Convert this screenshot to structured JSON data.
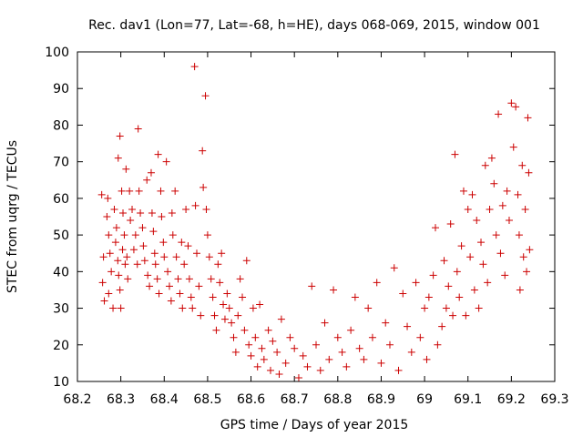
{
  "colors": {
    "series": "#cc0000",
    "axis": "#000000",
    "background": "#ffffff"
  },
  "chart_data": {
    "type": "scatter",
    "title": "Rec. dav1 (Lon=77, Lat=-68, h=HE), days 068-069, 2015, window 001",
    "xlabel": "GPS time / Days of year 2015",
    "ylabel": "STEC from uqrg / TECUs",
    "xlim": [
      68.2,
      69.3
    ],
    "ylim": [
      10,
      100
    ],
    "xticks": [
      68.2,
      68.3,
      68.4,
      68.5,
      68.6,
      68.7,
      68.8,
      68.9,
      69.0,
      69.1,
      69.2,
      69.3
    ],
    "xtick_labels": [
      "68.2",
      "68.3",
      "68.4",
      "68.5",
      "68.6",
      "68.7",
      "68.8",
      "68.9",
      "69",
      "69.1",
      "69.2",
      "69.3"
    ],
    "yticks": [
      10,
      20,
      30,
      40,
      50,
      60,
      70,
      80,
      90,
      100
    ],
    "ytick_labels": [
      "10",
      "20",
      "30",
      "40",
      "50",
      "60",
      "70",
      "80",
      "90",
      "100"
    ],
    "marker": "plus",
    "grid": false,
    "legend": "none",
    "points": [
      [
        68.256,
        61
      ],
      [
        68.26,
        44
      ],
      [
        68.258,
        37
      ],
      [
        68.262,
        32
      ],
      [
        68.27,
        60
      ],
      [
        68.268,
        55
      ],
      [
        68.272,
        50
      ],
      [
        68.275,
        45
      ],
      [
        68.278,
        40
      ],
      [
        68.272,
        34
      ],
      [
        68.282,
        30
      ],
      [
        68.285,
        57
      ],
      [
        68.29,
        52
      ],
      [
        68.288,
        48
      ],
      [
        68.293,
        43
      ],
      [
        68.295,
        39
      ],
      [
        68.298,
        35
      ],
      [
        68.3,
        30
      ],
      [
        68.294,
        71
      ],
      [
        68.298,
        77
      ],
      [
        68.302,
        62
      ],
      [
        68.305,
        56
      ],
      [
        68.308,
        50
      ],
      [
        68.304,
        46
      ],
      [
        68.31,
        42
      ],
      [
        68.312,
        68
      ],
      [
        68.314,
        44
      ],
      [
        68.316,
        38
      ],
      [
        68.32,
        62
      ],
      [
        68.322,
        54
      ],
      [
        68.326,
        57
      ],
      [
        68.33,
        46
      ],
      [
        68.334,
        50
      ],
      [
        68.338,
        42
      ],
      [
        68.34,
        79
      ],
      [
        68.342,
        62
      ],
      [
        68.345,
        56
      ],
      [
        68.35,
        52
      ],
      [
        68.352,
        47
      ],
      [
        68.355,
        43
      ],
      [
        68.36,
        65
      ],
      [
        68.362,
        39
      ],
      [
        68.366,
        36
      ],
      [
        68.37,
        67
      ],
      [
        68.372,
        56
      ],
      [
        68.375,
        51
      ],
      [
        68.378,
        45
      ],
      [
        68.38,
        42
      ],
      [
        68.384,
        38
      ],
      [
        68.388,
        34
      ],
      [
        68.386,
        72
      ],
      [
        68.392,
        62
      ],
      [
        68.394,
        55
      ],
      [
        68.398,
        48
      ],
      [
        68.4,
        44
      ],
      [
        68.405,
        70
      ],
      [
        68.408,
        40
      ],
      [
        68.412,
        36
      ],
      [
        68.416,
        32
      ],
      [
        68.418,
        56
      ],
      [
        68.42,
        50
      ],
      [
        68.425,
        62
      ],
      [
        68.428,
        44
      ],
      [
        68.432,
        38
      ],
      [
        68.436,
        34
      ],
      [
        68.44,
        48
      ],
      [
        68.442,
        30
      ],
      [
        68.446,
        42
      ],
      [
        68.45,
        57
      ],
      [
        68.455,
        47
      ],
      [
        68.458,
        38
      ],
      [
        68.462,
        33
      ],
      [
        68.465,
        30
      ],
      [
        68.47,
        96
      ],
      [
        68.472,
        58
      ],
      [
        68.475,
        45
      ],
      [
        68.48,
        36
      ],
      [
        68.484,
        28
      ],
      [
        68.488,
        73
      ],
      [
        68.49,
        63
      ],
      [
        68.495,
        88
      ],
      [
        68.497,
        57
      ],
      [
        68.5,
        50
      ],
      [
        68.504,
        44
      ],
      [
        68.508,
        38
      ],
      [
        68.512,
        33
      ],
      [
        68.516,
        28
      ],
      [
        68.52,
        24
      ],
      [
        68.524,
        42
      ],
      [
        68.528,
        37
      ],
      [
        68.532,
        45
      ],
      [
        68.536,
        31
      ],
      [
        68.54,
        27
      ],
      [
        68.545,
        34
      ],
      [
        68.55,
        30
      ],
      [
        68.555,
        26
      ],
      [
        68.56,
        22
      ],
      [
        68.565,
        18
      ],
      [
        68.57,
        28
      ],
      [
        68.575,
        38
      ],
      [
        68.58,
        33
      ],
      [
        68.585,
        24
      ],
      [
        68.59,
        43
      ],
      [
        68.595,
        20
      ],
      [
        68.6,
        17
      ],
      [
        68.605,
        30
      ],
      [
        68.61,
        22
      ],
      [
        68.615,
        14
      ],
      [
        68.62,
        31
      ],
      [
        68.625,
        19
      ],
      [
        68.63,
        16
      ],
      [
        68.64,
        24
      ],
      [
        68.645,
        13
      ],
      [
        68.65,
        21
      ],
      [
        68.66,
        18
      ],
      [
        68.665,
        12
      ],
      [
        68.67,
        27
      ],
      [
        68.68,
        15
      ],
      [
        68.69,
        22
      ],
      [
        68.7,
        19
      ],
      [
        68.71,
        11
      ],
      [
        68.72,
        17
      ],
      [
        68.73,
        14
      ],
      [
        68.74,
        36
      ],
      [
        68.75,
        20
      ],
      [
        68.76,
        13
      ],
      [
        68.77,
        26
      ],
      [
        68.78,
        16
      ],
      [
        68.79,
        35
      ],
      [
        68.8,
        22
      ],
      [
        68.81,
        18
      ],
      [
        68.82,
        14
      ],
      [
        68.83,
        24
      ],
      [
        68.84,
        33
      ],
      [
        68.85,
        19
      ],
      [
        68.86,
        16
      ],
      [
        68.87,
        30
      ],
      [
        68.88,
        22
      ],
      [
        68.89,
        37
      ],
      [
        68.9,
        15
      ],
      [
        68.91,
        26
      ],
      [
        68.92,
        20
      ],
      [
        68.93,
        41
      ],
      [
        68.94,
        13
      ],
      [
        68.95,
        34
      ],
      [
        68.96,
        25
      ],
      [
        68.97,
        18
      ],
      [
        68.98,
        37
      ],
      [
        68.99,
        22
      ],
      [
        69.0,
        30
      ],
      [
        69.005,
        16
      ],
      [
        69.01,
        33
      ],
      [
        69.02,
        39
      ],
      [
        69.025,
        52
      ],
      [
        69.03,
        20
      ],
      [
        69.04,
        25
      ],
      [
        69.045,
        43
      ],
      [
        69.05,
        30
      ],
      [
        69.055,
        36
      ],
      [
        69.06,
        53
      ],
      [
        69.065,
        28
      ],
      [
        69.07,
        72
      ],
      [
        69.075,
        40
      ],
      [
        69.08,
        33
      ],
      [
        69.085,
        47
      ],
      [
        69.09,
        62
      ],
      [
        69.095,
        28
      ],
      [
        69.1,
        57
      ],
      [
        69.105,
        44
      ],
      [
        69.11,
        61
      ],
      [
        69.115,
        35
      ],
      [
        69.12,
        54
      ],
      [
        69.125,
        30
      ],
      [
        69.13,
        48
      ],
      [
        69.135,
        42
      ],
      [
        69.14,
        69
      ],
      [
        69.145,
        37
      ],
      [
        69.15,
        57
      ],
      [
        69.155,
        71
      ],
      [
        69.16,
        64
      ],
      [
        69.165,
        50
      ],
      [
        69.17,
        83
      ],
      [
        69.175,
        45
      ],
      [
        69.18,
        58
      ],
      [
        69.185,
        39
      ],
      [
        69.19,
        62
      ],
      [
        69.195,
        54
      ],
      [
        69.2,
        86
      ],
      [
        69.205,
        74
      ],
      [
        69.21,
        85
      ],
      [
        69.215,
        61
      ],
      [
        69.218,
        50
      ],
      [
        69.22,
        35
      ],
      [
        69.225,
        69
      ],
      [
        69.228,
        44
      ],
      [
        69.232,
        57
      ],
      [
        69.235,
        40
      ],
      [
        69.238,
        82
      ],
      [
        69.24,
        67
      ],
      [
        69.242,
        46
      ]
    ]
  }
}
